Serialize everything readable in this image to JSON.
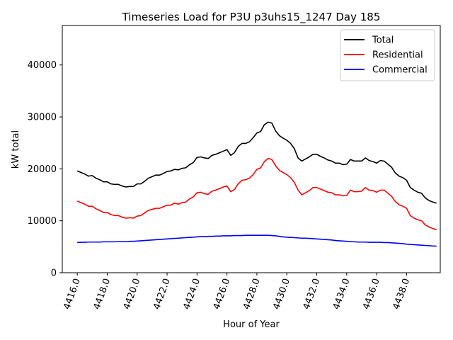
{
  "chart_data": {
    "type": "line",
    "title": "Timeseries Load for P3U p3uhs15_1247  Day 185",
    "xlabel": "Hour of Year",
    "ylabel": "kW total",
    "xlim": [
      4415.0,
      4440.25
    ],
    "ylim": [
      0,
      47600
    ],
    "x_ticks": [
      4416,
      4418,
      4420,
      4422,
      4424,
      4426,
      4428,
      4430,
      4432,
      4434,
      4436,
      4438
    ],
    "x_tick_labels": [
      "4416.0",
      "4418.0",
      "4420.0",
      "4422.0",
      "4424.0",
      "4426.0",
      "4428.0",
      "4430.0",
      "4432.0",
      "4434.0",
      "4436.0",
      "4438.0"
    ],
    "y_ticks": [
      0,
      10000,
      20000,
      30000,
      40000
    ],
    "y_tick_labels": [
      "0",
      "10000",
      "20000",
      "30000",
      "40000"
    ],
    "legend_position": "top-right",
    "x_start": 4416.0,
    "x_step": 0.25,
    "series": [
      {
        "name": "Total",
        "color": "#000000",
        "values": [
          19600,
          19300,
          19000,
          18600,
          18700,
          18200,
          17900,
          17500,
          17500,
          17100,
          17000,
          17000,
          16700,
          16500,
          16600,
          16600,
          17100,
          17100,
          17600,
          18200,
          18500,
          18800,
          18800,
          19100,
          19500,
          19600,
          19900,
          19800,
          20100,
          20200,
          20800,
          21200,
          22200,
          22300,
          22100,
          22000,
          22600,
          22800,
          23100,
          23400,
          23700,
          22600,
          23100,
          24300,
          24900,
          24900,
          25200,
          26000,
          26900,
          27200,
          28500,
          29000,
          28800,
          27300,
          26400,
          25900,
          25500,
          24900,
          23900,
          22100,
          21500,
          21900,
          22300,
          22800,
          22800,
          22400,
          22100,
          21700,
          21500,
          21100,
          21100,
          20800,
          20900,
          21800,
          21500,
          21500,
          21500,
          22100,
          21600,
          21400,
          21100,
          21600,
          21500,
          20900,
          20300,
          19200,
          18600,
          18300,
          17800,
          16400,
          15900,
          15500,
          15300,
          14400,
          13900,
          13600,
          13400
        ]
      },
      {
        "name": "Residential",
        "color": "#ff0000",
        "values": [
          13800,
          13500,
          13200,
          12800,
          12800,
          12300,
          12000,
          11600,
          11600,
          11200,
          11000,
          11000,
          10700,
          10500,
          10600,
          10500,
          10900,
          11000,
          11500,
          12000,
          12200,
          12400,
          12400,
          12700,
          13000,
          13000,
          13400,
          13200,
          13500,
          13600,
          14200,
          14600,
          15400,
          15500,
          15200,
          15100,
          15700,
          15900,
          16200,
          16500,
          16700,
          15600,
          16000,
          17100,
          17800,
          17900,
          18200,
          18900,
          19900,
          20200,
          21400,
          22000,
          21800,
          20600,
          19700,
          19300,
          18900,
          18300,
          17400,
          15900,
          15000,
          15400,
          15800,
          16400,
          16400,
          16100,
          15800,
          15500,
          15400,
          15000,
          15000,
          14800,
          14900,
          15900,
          15600,
          15600,
          15700,
          16400,
          15900,
          15800,
          15500,
          15900,
          15900,
          15300,
          14700,
          13700,
          13100,
          12800,
          12400,
          11000,
          10500,
          10200,
          10000,
          9200,
          8800,
          8500,
          8300
        ]
      },
      {
        "name": "Commercial",
        "color": "#0000ff",
        "values": [
          5800,
          5850,
          5850,
          5900,
          5900,
          5900,
          5900,
          5950,
          5950,
          5950,
          5950,
          6000,
          6000,
          6000,
          6050,
          6050,
          6100,
          6150,
          6200,
          6250,
          6300,
          6350,
          6400,
          6450,
          6500,
          6550,
          6600,
          6650,
          6700,
          6750,
          6800,
          6850,
          6900,
          6950,
          6950,
          7000,
          7000,
          7050,
          7050,
          7100,
          7100,
          7100,
          7150,
          7150,
          7150,
          7200,
          7200,
          7200,
          7200,
          7200,
          7200,
          7200,
          7150,
          7100,
          7000,
          6900,
          6850,
          6800,
          6750,
          6700,
          6650,
          6650,
          6600,
          6550,
          6500,
          6450,
          6400,
          6350,
          6300,
          6200,
          6150,
          6100,
          6050,
          6000,
          5950,
          5900,
          5900,
          5900,
          5850,
          5850,
          5850,
          5850,
          5800,
          5800,
          5750,
          5700,
          5650,
          5600,
          5500,
          5450,
          5400,
          5350,
          5300,
          5250,
          5200,
          5150,
          5100
        ]
      }
    ]
  }
}
